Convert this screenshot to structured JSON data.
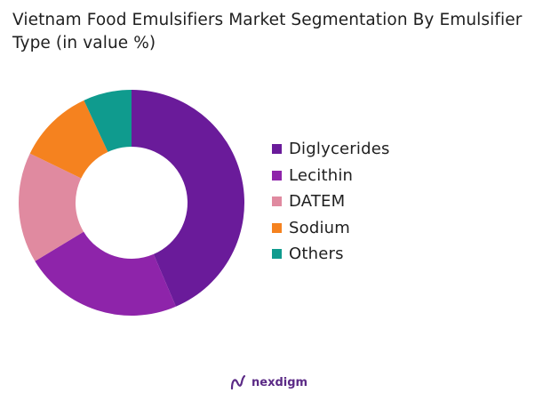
{
  "chart_data": {
    "type": "pie",
    "variant": "donut",
    "title": "Vietnam Food Emulsifiers Market Segmentation By Emulsifier Type (in value %)",
    "categories": [
      "Diglycerides",
      "Lecithin",
      "DATEM",
      "Sodium",
      "Others"
    ],
    "values": [
      44,
      23,
      16,
      11,
      7
    ],
    "colors": [
      "#6a1b9a",
      "#8e24aa",
      "#e08aa0",
      "#f5821f",
      "#0f9b8e"
    ],
    "legend_position": "right"
  },
  "brand": {
    "name": "nexdigm",
    "logo_icon": "nexdigm-logo-icon"
  }
}
